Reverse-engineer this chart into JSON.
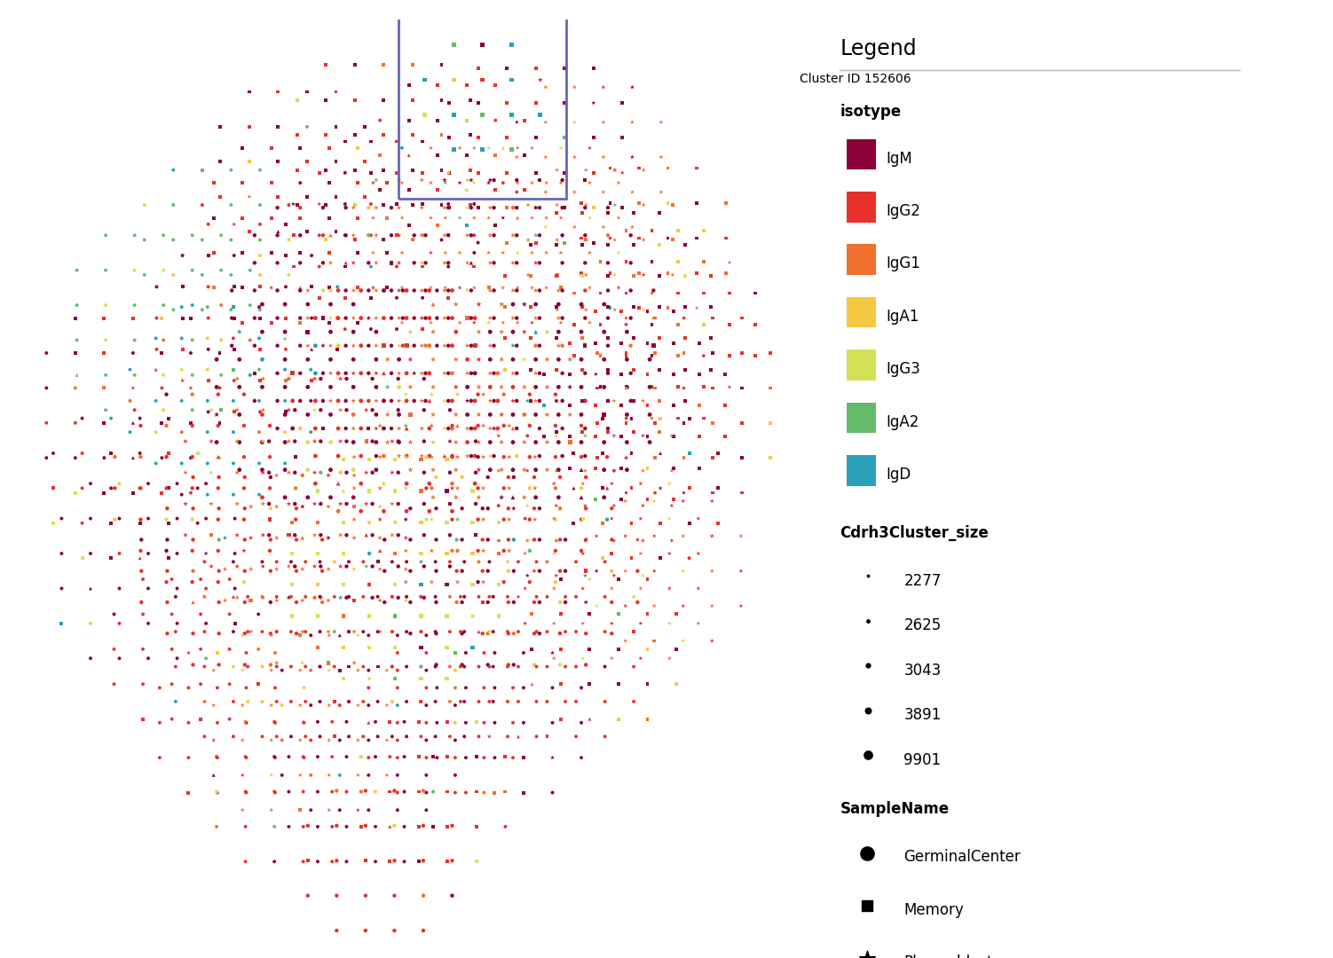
{
  "isotype_colors": {
    "IgM": "#8B0038",
    "IgG2": "#E8312A",
    "IgG1": "#F07030",
    "IgA1": "#F5C842",
    "IgG3": "#D4E157",
    "IgA2": "#66BB6A",
    "IgD": "#29A0B8"
  },
  "sample_markers": {
    "GerminalCenter": "o",
    "Memory": "s",
    "Plasmablast": "*",
    "Naive": "^"
  },
  "size_legend": [
    2277,
    2625,
    3043,
    3891,
    9901
  ],
  "legend_title": "Legend",
  "isotype_label": "isotype",
  "size_label": "Cdrh3Cluster_size",
  "sample_label": "SampleName",
  "highlighted_cluster": "Cluster ID 152606",
  "bg_color": "#FFFFFF"
}
